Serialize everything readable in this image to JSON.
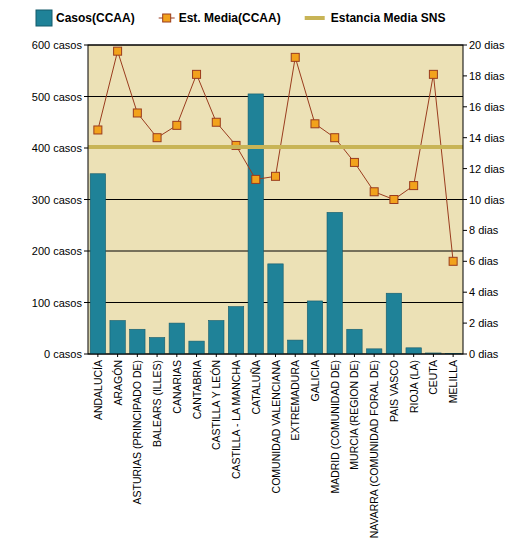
{
  "chart_data": {
    "type": "bar",
    "categories": [
      "ANDALUCÍA",
      "ARAGÓN",
      "ASTURIAS (PRINCIPADO DE)",
      "BALEARS (ILLES)",
      "CANARIAS",
      "CANTABRIA",
      "CASTILLA Y LEÓN",
      "CASTILLA - LA MANCHA",
      "CATALUÑA",
      "COMUNIDAD VALENCIANA",
      "EXTREMADURA",
      "GALICIA",
      "MADRID (COMUNIDAD DE)",
      "MURCIA (REGION DE)",
      "NAVARRA (COMUNIDAD FORAL DE)",
      "PAIS VASCO",
      "RIOJA (LA)",
      "CEUTA",
      "MELILLA"
    ],
    "series": [
      {
        "name": "Casos(CCAA)",
        "type": "bar",
        "color": "#1f8298",
        "values": [
          350,
          65,
          48,
          32,
          60,
          25,
          65,
          92,
          505,
          175,
          27,
          103,
          275,
          48,
          10,
          118,
          12,
          2,
          1
        ]
      },
      {
        "name": "Est. Media(CCAA)",
        "type": "line",
        "axis": "y2",
        "color": "#9a3c1e",
        "marker": "square",
        "values": [
          14.5,
          19.6,
          15.6,
          14.0,
          14.8,
          18.1,
          15.0,
          13.5,
          11.3,
          11.5,
          19.2,
          14.9,
          14.0,
          12.4,
          10.5,
          10.0,
          10.9,
          18.1,
          6.0
        ]
      },
      {
        "name": "Estancia Media SNS",
        "type": "line",
        "axis": "y2",
        "color": "#c8b456",
        "values": [
          13.4,
          13.4,
          13.4,
          13.4,
          13.4,
          13.4,
          13.4,
          13.4,
          13.4,
          13.4,
          13.4,
          13.4,
          13.4,
          13.4,
          13.4,
          13.4,
          13.4,
          13.4,
          13.4
        ]
      }
    ],
    "ylim": [
      0,
      600
    ],
    "yticks": [
      {
        "value": 0,
        "label": "0 casos"
      },
      {
        "value": 100,
        "label": "100 casos"
      },
      {
        "value": 200,
        "label": "200 casos"
      },
      {
        "value": 300,
        "label": "300 casos"
      },
      {
        "value": 400,
        "label": "400 casos"
      },
      {
        "value": 500,
        "label": "500 casos"
      },
      {
        "value": 600,
        "label": "600 casos"
      }
    ],
    "y2lim": [
      0,
      20
    ],
    "y2ticks": [
      {
        "value": 0,
        "label": "0 dias"
      },
      {
        "value": 2,
        "label": "2 dias"
      },
      {
        "value": 4,
        "label": "4 dias"
      },
      {
        "value": 6,
        "label": "6 dias"
      },
      {
        "value": 8,
        "label": "8 dias"
      },
      {
        "value": 10,
        "label": "10 dias"
      },
      {
        "value": 12,
        "label": "12 dias"
      },
      {
        "value": 14,
        "label": "14 dias"
      },
      {
        "value": 16,
        "label": "16 dias"
      },
      {
        "value": 18,
        "label": "18 dias"
      },
      {
        "value": 20,
        "label": "20 dias"
      }
    ],
    "grid": true,
    "legend": "top"
  }
}
